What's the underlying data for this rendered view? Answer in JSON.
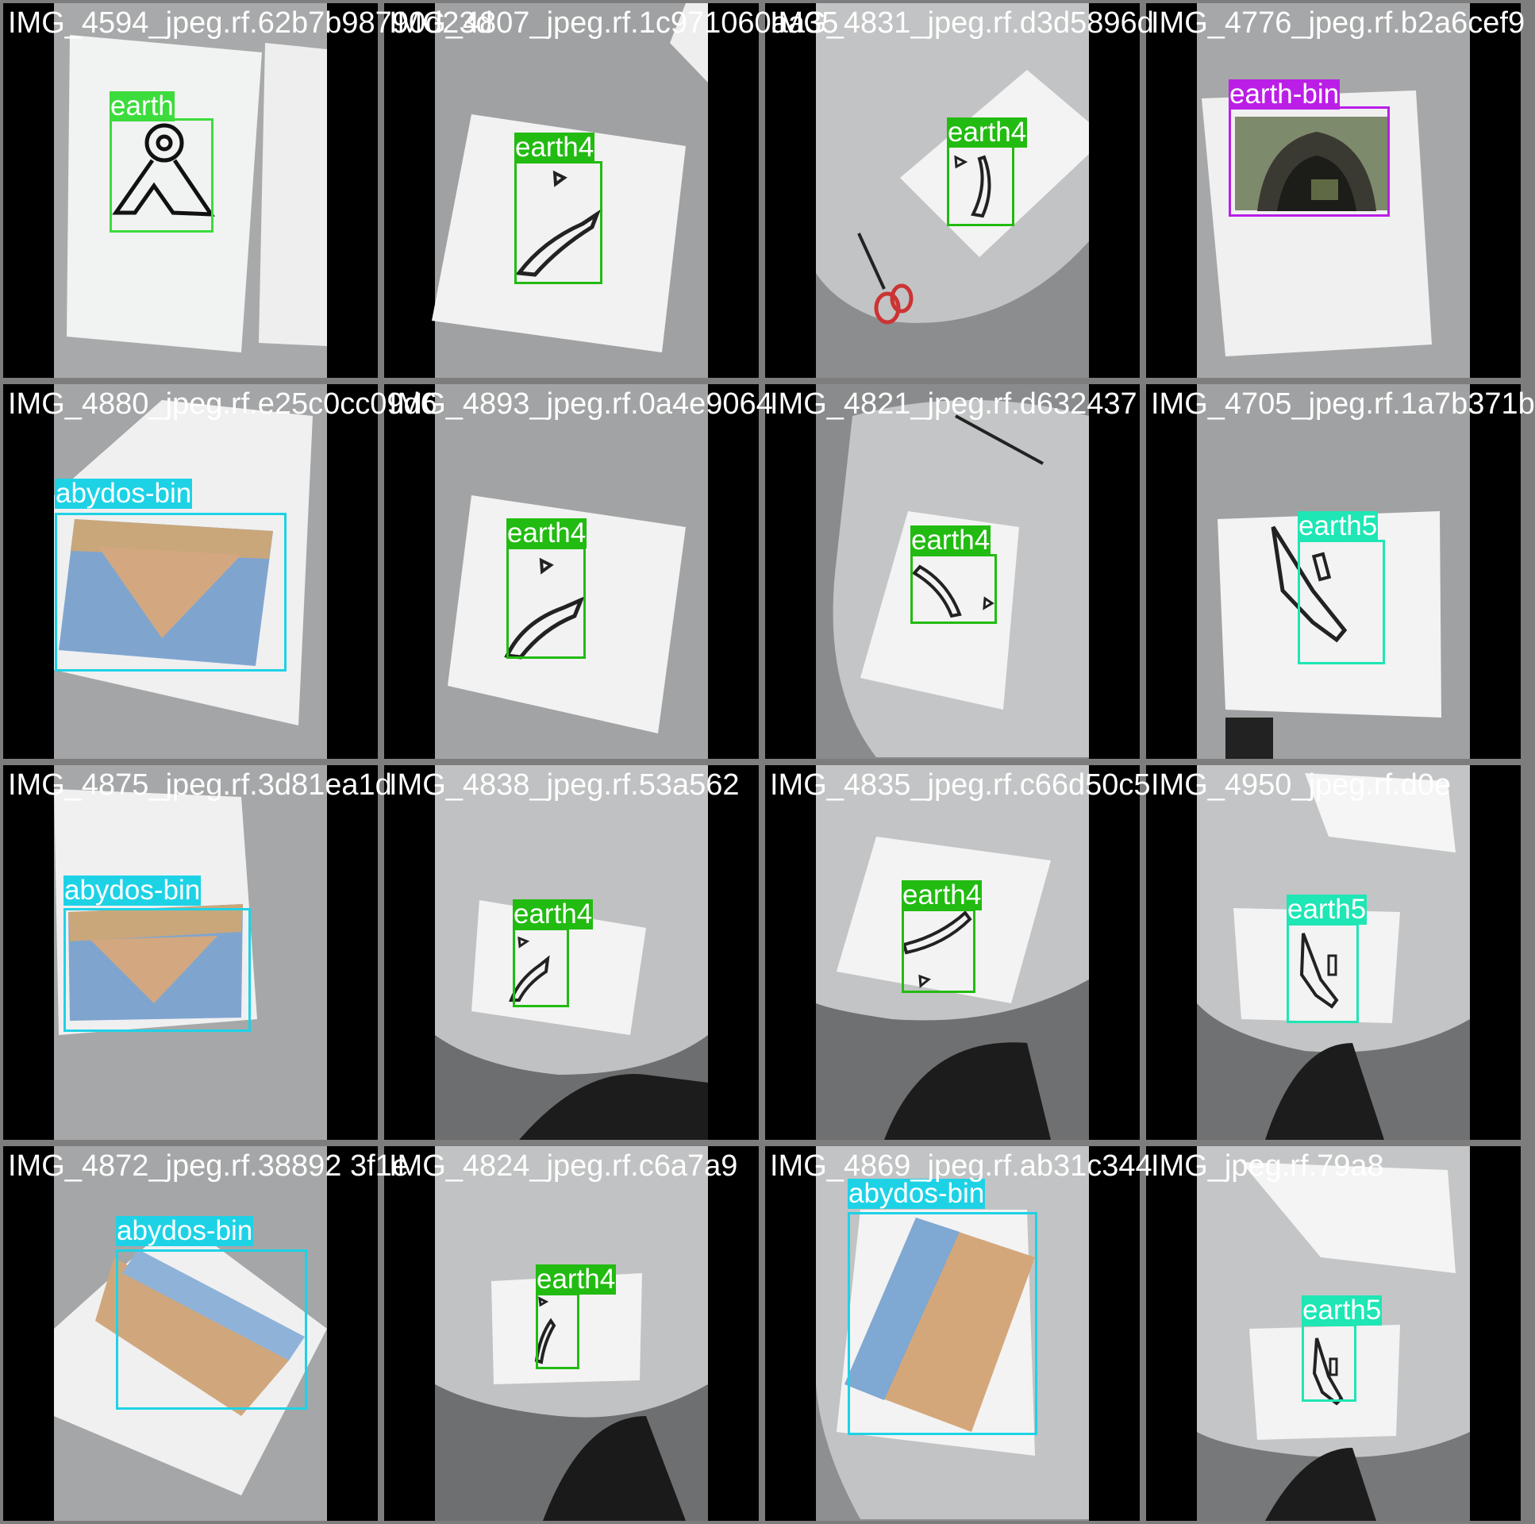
{
  "grid": {
    "tiles": [
      {
        "filename": "IMG_4594_jpeg.rf.62b7b98790d23d",
        "scene": "paper-earth",
        "detections": [
          {
            "label": "earth",
            "color": "#3cdc3c"
          }
        ]
      },
      {
        "filename": "IMG_4807_jpeg.rf.1c971060aa35",
        "scene": "curve-1",
        "detections": [
          {
            "label": "earth4",
            "color": "#22bb11"
          }
        ]
      },
      {
        "filename": "IMG_4831_jpeg.rf.d3d5896d",
        "scene": "table-scissors",
        "detections": [
          {
            "label": "earth4",
            "color": "#22bb11"
          }
        ]
      },
      {
        "filename": "IMG_4776_jpeg.rf.b2a6cef9",
        "scene": "bin-photo",
        "detections": [
          {
            "label": "earth-bin",
            "color": "#bb1ee6"
          }
        ]
      },
      {
        "filename": "IMG_4880_jpeg.rf.e25c0cc09d6",
        "scene": "abydos-1",
        "detections": [
          {
            "label": "abydos-bin",
            "color": "#1ed2e6"
          }
        ]
      },
      {
        "filename": "IMG_4893_jpeg.rf.0a4e9064",
        "scene": "curve-2",
        "detections": [
          {
            "label": "earth4",
            "color": "#22bb11"
          }
        ]
      },
      {
        "filename": "IMG_4821_jpeg.rf.d632437",
        "scene": "table-curve",
        "detections": [
          {
            "label": "earth4",
            "color": "#22bb11"
          }
        ]
      },
      {
        "filename": "IMG_4705_jpeg.rf.1a7b371b",
        "scene": "earth5-1",
        "detections": [
          {
            "label": "earth5",
            "color": "#1ee6b4"
          }
        ]
      },
      {
        "filename": "IMG_4875_jpeg.rf.3d81ea1d",
        "scene": "abydos-2",
        "detections": [
          {
            "label": "abydos-bin",
            "color": "#1ed2e6"
          }
        ]
      },
      {
        "filename": "IMG_4838_jpeg.rf.53a562",
        "scene": "curve-3",
        "detections": [
          {
            "label": "earth4",
            "color": "#22bb11"
          }
        ]
      },
      {
        "filename": "IMG_4835_jpeg.rf.c66d50c5",
        "scene": "curve-4",
        "detections": [
          {
            "label": "earth4",
            "color": "#22bb11"
          }
        ]
      },
      {
        "filename": "IMG_4950_jpeg.rf.d0e",
        "scene": "earth5-2",
        "detections": [
          {
            "label": "earth5",
            "color": "#1ee6b4"
          }
        ]
      },
      {
        "filename": "IMG_4872_jpeg.rf.38892 3f1e",
        "scene": "abydos-3",
        "detections": [
          {
            "label": "abydos-bin",
            "color": "#1ed2e6"
          }
        ]
      },
      {
        "filename": "IMG_4824_jpeg.rf.c6a7a9",
        "scene": "curve-5",
        "detections": [
          {
            "label": "earth4",
            "color": "#22bb11"
          }
        ]
      },
      {
        "filename": "IMG_4869_jpeg.rf.ab31c344",
        "scene": "abydos-4",
        "detections": [
          {
            "label": "abydos-bin",
            "color": "#1ed2e6"
          }
        ]
      },
      {
        "filename": "IMG_jpeg.rf.79a8",
        "scene": "earth5-3",
        "detections": [
          {
            "label": "earth5",
            "color": "#1ee6b4"
          }
        ]
      }
    ]
  }
}
